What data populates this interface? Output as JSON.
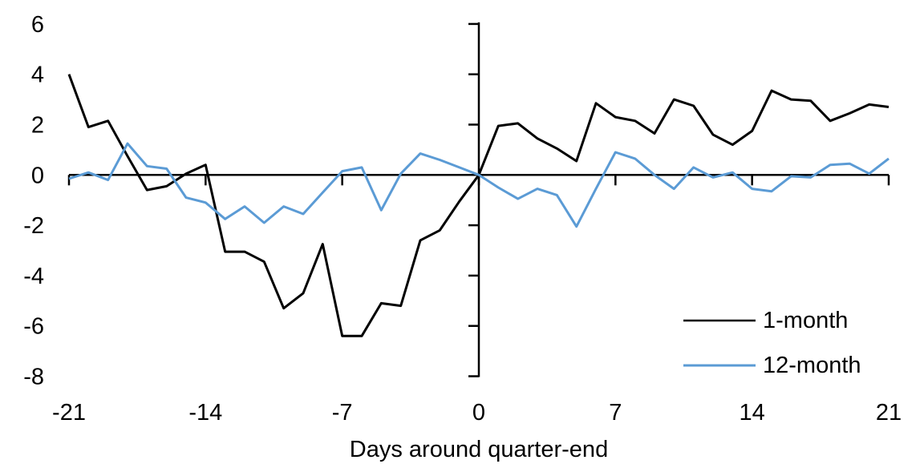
{
  "chart_data": {
    "type": "line",
    "title": "",
    "xlabel": "Days around quarter-end",
    "ylabel": "",
    "x_range": [
      -21,
      21
    ],
    "y_range": [
      -8,
      6
    ],
    "x_ticks": [
      -21,
      -14,
      -7,
      0,
      7,
      14,
      21
    ],
    "y_ticks": [
      6,
      4,
      2,
      0,
      -2,
      -4,
      -6,
      -8
    ],
    "grid": false,
    "legend_position": "lower-right",
    "axis_color": "#000000",
    "x": [
      -21,
      -20,
      -19,
      -18,
      -17,
      -16,
      -15,
      -14,
      -13,
      -12,
      -11,
      -10,
      -9,
      -8,
      -7,
      -6,
      -5,
      -4,
      -3,
      -2,
      -1,
      0,
      1,
      2,
      3,
      4,
      5,
      6,
      7,
      8,
      9,
      10,
      11,
      12,
      13,
      14,
      15,
      16,
      17,
      18,
      19,
      20,
      21
    ],
    "series": [
      {
        "name": "1-month",
        "color": "#000000",
        "values": [
          4.0,
          1.9,
          2.15,
          0.75,
          -0.6,
          -0.45,
          0.05,
          0.4,
          -3.05,
          -3.05,
          -3.45,
          -5.3,
          -4.7,
          -2.75,
          -6.4,
          -6.4,
          -5.1,
          -5.2,
          -2.6,
          -2.2,
          -1.05,
          0,
          1.95,
          2.05,
          1.45,
          1.05,
          0.55,
          2.85,
          2.3,
          2.15,
          1.65,
          3.0,
          2.75,
          1.6,
          1.2,
          1.75,
          3.35,
          3.0,
          2.95,
          2.15,
          2.45,
          2.8,
          2.7
        ]
      },
      {
        "name": "12-month",
        "color": "#5B9BD5",
        "values": [
          -0.15,
          0.1,
          -0.2,
          1.25,
          0.35,
          0.25,
          -0.9,
          -1.1,
          -1.75,
          -1.25,
          -1.9,
          -1.25,
          -1.55,
          -0.7,
          0.15,
          0.3,
          -1.4,
          0.05,
          0.85,
          0.6,
          0.3,
          0,
          -0.5,
          -0.95,
          -0.55,
          -0.8,
          -2.05,
          -0.55,
          0.9,
          0.65,
          0.0,
          -0.55,
          0.3,
          -0.1,
          0.1,
          -0.55,
          -0.65,
          -0.05,
          -0.1,
          0.4,
          0.45,
          0.05,
          0.65
        ]
      }
    ]
  }
}
